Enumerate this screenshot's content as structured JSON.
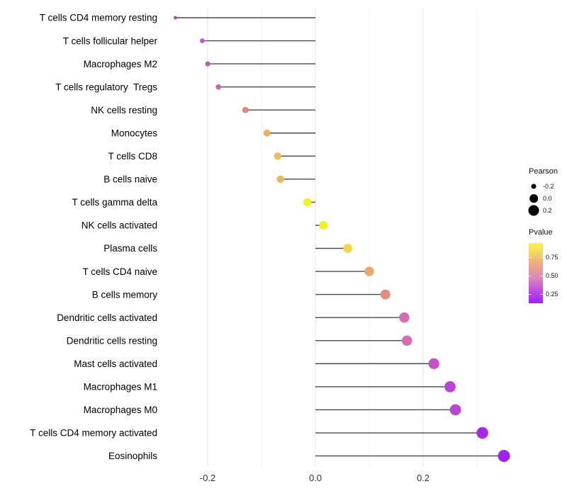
{
  "figure": {
    "background": "#FFFFFF"
  },
  "chart_data": {
    "type": "lollipop",
    "orientation": "horizontal",
    "title": "",
    "xlabel": "",
    "ylabel": "",
    "x_ticks": [
      {
        "label": "-0.2",
        "value": -0.2
      },
      {
        "label": "0.0",
        "value": 0.0
      },
      {
        "label": "0.2",
        "value": 0.2
      }
    ],
    "x_range": [
      -0.29,
      0.378
    ],
    "gridlines_major": [
      -0.2,
      0.0,
      0.2
    ],
    "gridlines_minor": [
      -0.1,
      0.1,
      0.3
    ],
    "baseline_x": 0.0,
    "rows": [
      {
        "label": "T cells CD4 memory resting",
        "pearson": -0.26,
        "pvalue": 0.28,
        "color": "#AF44CC"
      },
      {
        "label": "T cells follicular helper",
        "pearson": -0.21,
        "pvalue": 0.33,
        "color": "#C455C8"
      },
      {
        "label": "Macrophages M2",
        "pearson": -0.2,
        "pvalue": 0.33,
        "color": "#C455C8"
      },
      {
        "label": "T cells regulatory  Tregs",
        "pearson": -0.18,
        "pvalue": 0.45,
        "color": "#CD65BB"
      },
      {
        "label": "NK cells resting",
        "pearson": -0.13,
        "pvalue": 0.55,
        "color": "#E18A80"
      },
      {
        "label": "Monocytes",
        "pearson": -0.09,
        "pvalue": 0.68,
        "color": "#EDAE58"
      },
      {
        "label": "T cells CD8",
        "pearson": -0.07,
        "pvalue": 0.72,
        "color": "#ECBE5C"
      },
      {
        "label": "B cells naive",
        "pearson": -0.065,
        "pvalue": 0.7,
        "color": "#ECB95E"
      },
      {
        "label": "T cells gamma delta",
        "pearson": -0.015,
        "pvalue": 0.92,
        "color": "#F4F118"
      },
      {
        "label": "NK cells activated",
        "pearson": 0.015,
        "pvalue": 0.92,
        "color": "#F4F118"
      },
      {
        "label": "Plasma cells",
        "pearson": 0.06,
        "pvalue": 0.8,
        "color": "#F2D44E"
      },
      {
        "label": "T cells CD4 naive",
        "pearson": 0.1,
        "pvalue": 0.66,
        "color": "#ECA86A"
      },
      {
        "label": "B cells memory",
        "pearson": 0.13,
        "pvalue": 0.54,
        "color": "#E58D7D"
      },
      {
        "label": "Dendritic cells activated",
        "pearson": 0.165,
        "pvalue": 0.41,
        "color": "#D56CB0"
      },
      {
        "label": "Dendritic cells resting",
        "pearson": 0.17,
        "pvalue": 0.41,
        "color": "#D56CB0"
      },
      {
        "label": "Mast cells activated",
        "pearson": 0.22,
        "pvalue": 0.32,
        "color": "#C751C4"
      },
      {
        "label": "Macrophages M1",
        "pearson": 0.25,
        "pvalue": 0.26,
        "color": "#B845D5"
      },
      {
        "label": "Macrophages M0",
        "pearson": 0.26,
        "pvalue": 0.26,
        "color": "#B845D5"
      },
      {
        "label": "T cells CD4 memory activated",
        "pearson": 0.31,
        "pvalue": 0.18,
        "color": "#A62BE8"
      },
      {
        "label": "Eosinophils",
        "pearson": 0.35,
        "pvalue": 0.15,
        "color": "#9D23EF"
      }
    ],
    "legend": {
      "size": {
        "title": "Pearson",
        "entries": [
          {
            "label": "-0.2",
            "value": -0.2
          },
          {
            "label": "0.0",
            "value": 0.0
          },
          {
            "label": "0.2",
            "value": 0.2
          }
        ]
      },
      "color": {
        "title": "Pvalue",
        "ticks": [
          {
            "label": "0.75",
            "p": 0.75
          },
          {
            "label": "0.50",
            "p": 0.5
          },
          {
            "label": "0.25",
            "p": 0.25
          }
        ],
        "bar_range_top_bottom": [
          0.94,
          0.13
        ],
        "gradient_stops": [
          {
            "offset": 0.0,
            "color": "#F8F44E"
          },
          {
            "offset": 0.15,
            "color": "#F5D763"
          },
          {
            "offset": 0.32,
            "color": "#EFAF80"
          },
          {
            "offset": 0.47,
            "color": "#E4989F"
          },
          {
            "offset": 0.6,
            "color": "#DA84BE"
          },
          {
            "offset": 0.73,
            "color": "#C75FDE"
          },
          {
            "offset": 0.87,
            "color": "#B238F0"
          },
          {
            "offset": 1.0,
            "color": "#A124F6"
          }
        ]
      }
    },
    "style": {
      "stem_color": "#4A4A4A",
      "grid_major_color": "#E3E3E3",
      "grid_minor_color": "#F1F1F1",
      "x_tick_label_color": "#333333",
      "y_label_color": "#000000",
      "legend_dot_color": "#000000"
    }
  }
}
